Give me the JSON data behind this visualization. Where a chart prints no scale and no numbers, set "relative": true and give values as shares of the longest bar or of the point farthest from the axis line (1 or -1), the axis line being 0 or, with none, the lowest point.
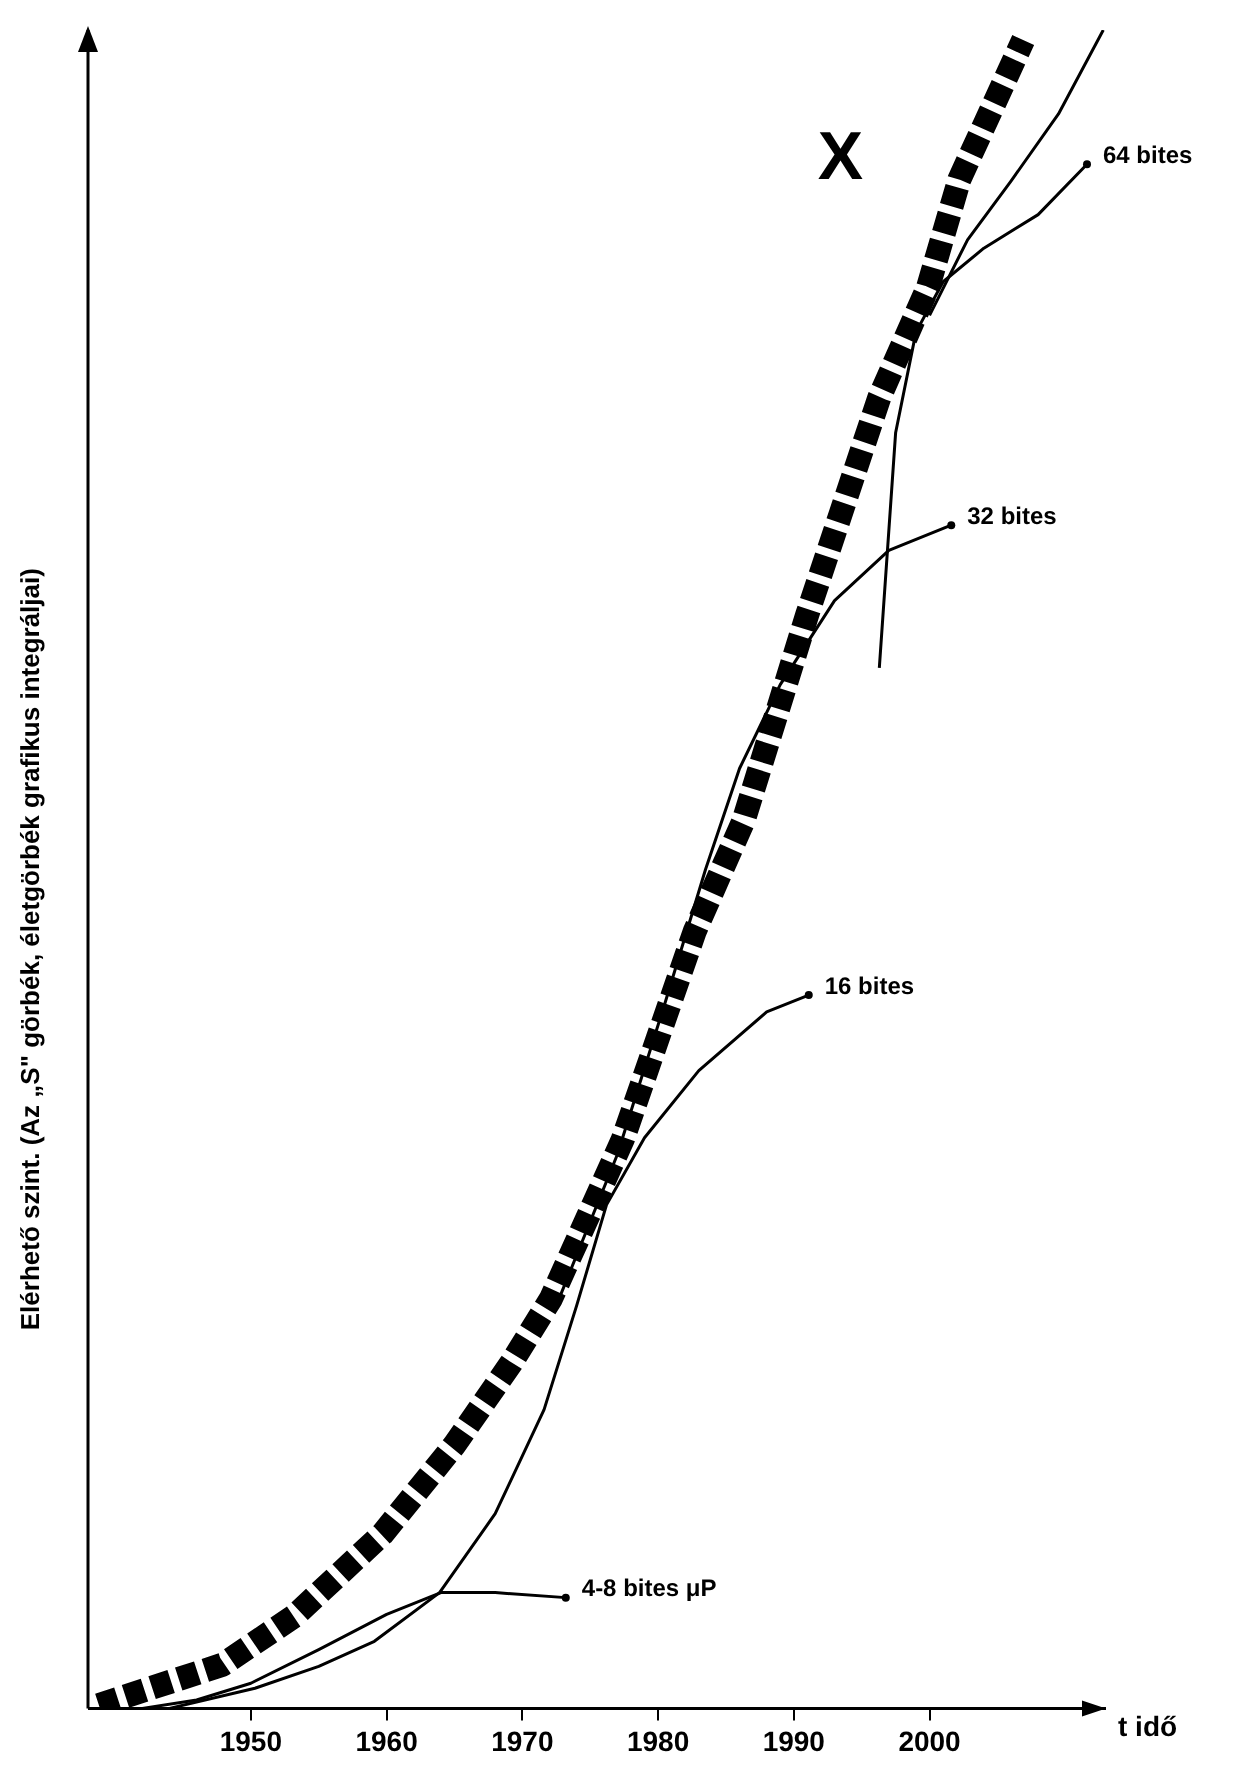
{
  "chart_data": {
    "type": "line",
    "xlabel": "t idő",
    "ylabel": "Elérhető szint. (Az „S\" görbék, életgörbék grafikus integráljai)",
    "xlim": [
      1938,
      2013
    ],
    "xticks": [
      1950,
      1960,
      1970,
      1980,
      1990,
      2000
    ],
    "relative": true,
    "grid": false,
    "legend": false,
    "tick_labels": "x",
    "marker": "none",
    "series": [
      {
        "name": "X",
        "color": "#000000",
        "line_style": "dashed",
        "x": [
          1938.8,
          1947.9,
          1953.2,
          1959.7,
          1965.0,
          1969.2,
          1972.1,
          1977.4,
          1982.7,
          1986.3,
          1991.0,
          1996.3,
          1999.9,
          2002.2,
          2006.9
        ],
        "values": [
          0.002,
          0.026,
          0.055,
          0.104,
          0.157,
          0.206,
          0.244,
          0.339,
          0.463,
          0.529,
          0.652,
          0.781,
          0.847,
          0.911,
          0.994
        ]
      },
      {
        "name": "4-8 bites μP",
        "color": "#000000",
        "line_style": "solid",
        "x": [
          1942,
          1946,
          1950,
          1955,
          1960,
          1964,
          1968,
          1973.2
        ],
        "values": [
          0.0,
          0.005,
          0.015,
          0.035,
          0.056,
          0.069,
          0.069,
          0.066
        ]
      },
      {
        "name": "16 bites",
        "color": "#000000",
        "line_style": "solid",
        "x": [
          1944,
          1950.3,
          1955,
          1959.1,
          1963.9,
          1968,
          1971.6,
          1974,
          1976.2,
          1979,
          1983,
          1988,
          1991.1
        ],
        "values": [
          0.0,
          0.012,
          0.025,
          0.04,
          0.069,
          0.116,
          0.178,
          0.24,
          0.3,
          0.34,
          0.38,
          0.415,
          0.425
        ]
      },
      {
        "name": "32 bites",
        "color": "#000000",
        "line_style": "solid",
        "x": [
          1972.5,
          1977,
          1980.5,
          1983.5,
          1986,
          1989,
          1993,
          1997,
          2001.6
        ],
        "values": [
          0.24,
          0.33,
          0.42,
          0.5,
          0.56,
          0.61,
          0.66,
          0.69,
          0.705
        ]
      },
      {
        "name": "64 bites",
        "color": "#000000",
        "line_style": "solid",
        "x": [
          1996.3,
          1997.5,
          1999,
          2001,
          2004,
          2008,
          2011.6
        ],
        "values": [
          0.62,
          0.76,
          0.82,
          0.85,
          0.87,
          0.89,
          0.92
        ]
      },
      {
        "color": "#000000",
        "line_style": "solid",
        "x": [
          2000,
          2002.8,
          2006,
          2009.5,
          2012.8
        ],
        "values": [
          0.83,
          0.875,
          0.91,
          0.95,
          1.0
        ]
      }
    ]
  }
}
